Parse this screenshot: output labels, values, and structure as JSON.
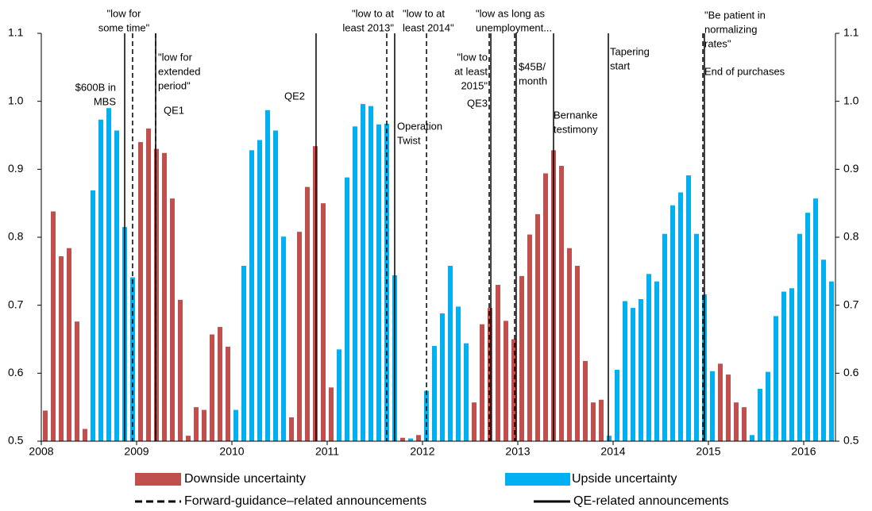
{
  "chart_data": {
    "type": "bar",
    "categories": [
      "2008",
      null,
      null,
      null,
      null,
      null,
      null,
      null,
      null,
      null,
      null,
      null,
      "2009",
      null,
      null,
      null,
      null,
      null,
      null,
      null,
      null,
      null,
      null,
      null,
      "2010",
      null,
      null,
      null,
      null,
      null,
      null,
      null,
      null,
      null,
      null,
      null,
      "2011",
      null,
      null,
      null,
      null,
      null,
      null,
      null,
      null,
      null,
      null,
      null,
      "2012",
      null,
      null,
      null,
      null,
      null,
      null,
      null,
      null,
      null,
      null,
      null,
      "2013",
      null,
      null,
      null,
      null,
      null,
      null,
      null,
      null,
      null,
      null,
      null,
      "2014",
      null,
      null,
      null,
      null,
      null,
      null,
      null,
      null,
      null,
      null,
      null,
      "2015",
      null,
      null,
      null,
      null,
      null,
      null,
      null,
      null,
      null,
      null,
      null,
      "2016",
      null,
      null,
      null
    ],
    "series": [
      {
        "name": "Downside uncertainty",
        "color": "#c0504d",
        "values": [
          0.545,
          0.838,
          0.772,
          0.784,
          0.676,
          0.518,
          null,
          null,
          null,
          null,
          null,
          null,
          0.94,
          0.96,
          0.93,
          0.924,
          0.857,
          0.708,
          0.508,
          0.55,
          0.546,
          0.657,
          0.668,
          0.639,
          null,
          null,
          null,
          null,
          null,
          null,
          null,
          0.535,
          0.808,
          0.874,
          0.934,
          0.85,
          0.579,
          null,
          null,
          null,
          null,
          null,
          null,
          null,
          null,
          0.505,
          null,
          0.509,
          null,
          null,
          null,
          null,
          null,
          null,
          0.557,
          0.672,
          0.696,
          0.73,
          0.677,
          0.65,
          0.743,
          0.804,
          0.834,
          0.894,
          0.928,
          0.905,
          0.784,
          0.758,
          0.618,
          0.557,
          0.561,
          null,
          null,
          null,
          null,
          null,
          null,
          null,
          null,
          null,
          null,
          null,
          null,
          null,
          null,
          0.614,
          0.598,
          0.557,
          0.55,
          null,
          null,
          null,
          null,
          null,
          null,
          null,
          null,
          null,
          null,
          null
        ]
      },
      {
        "name": "Upside uncertainty",
        "color": "#00b0f0",
        "values": [
          null,
          null,
          null,
          null,
          null,
          null,
          0.869,
          0.973,
          0.99,
          0.957,
          0.815,
          0.741,
          null,
          null,
          null,
          null,
          null,
          null,
          null,
          null,
          null,
          null,
          null,
          null,
          0.546,
          0.758,
          0.928,
          0.943,
          0.987,
          0.957,
          0.801,
          null,
          null,
          null,
          null,
          null,
          null,
          0.635,
          0.888,
          0.963,
          0.996,
          0.993,
          0.966,
          0.967,
          0.744,
          null,
          0.504,
          null,
          0.574,
          0.64,
          0.688,
          0.758,
          0.698,
          0.644,
          null,
          null,
          null,
          null,
          null,
          null,
          null,
          null,
          null,
          null,
          null,
          null,
          null,
          null,
          null,
          null,
          null,
          0.508,
          0.605,
          0.706,
          0.696,
          0.709,
          0.746,
          0.735,
          0.805,
          0.847,
          0.866,
          0.891,
          0.805,
          0.716,
          0.603,
          null,
          null,
          null,
          null,
          0.509,
          0.577,
          0.602,
          0.684,
          0.72,
          0.725,
          0.805,
          0.836,
          0.857,
          0.767,
          0.735
        ]
      }
    ],
    "ylim": [
      0.5,
      1.1
    ],
    "yticks": [
      0.5,
      0.6,
      0.7,
      0.8,
      0.9,
      {
        "value": 1.0,
        "label": "1.0"
      },
      1.1
    ],
    "xlim": [
      2008,
      2016.3333
    ],
    "line_styles": [
      {
        "style": "dashed",
        "name": "Forward-guidance–related announcements"
      },
      {
        "style": "solid",
        "name": "QE-related announcements"
      }
    ],
    "events": [
      {
        "x": 2008.875,
        "style": "solid",
        "label": [
          "$600B in",
          "MBS"
        ]
      },
      {
        "x": 2008.958,
        "style": "dashed",
        "label": [
          "\"low for",
          "some time\""
        ]
      },
      {
        "x": 2009.2,
        "style": "dashed",
        "label": [
          "\"low for",
          "extended",
          "period\""
        ]
      },
      {
        "x": 2009.2,
        "style": "solid",
        "label": [
          "QE1"
        ]
      },
      {
        "x": 2010.883,
        "style": "solid",
        "label": [
          "QE2"
        ]
      },
      {
        "x": 2011.625,
        "style": "dashed",
        "label": [
          "\"low to at",
          "least 2013\""
        ]
      },
      {
        "x": 2011.708,
        "style": "solid",
        "label": [
          "Operation",
          "Twist"
        ]
      },
      {
        "x": 2012.042,
        "style": "dashed",
        "label": [
          "\"low to at",
          "least 2014\""
        ]
      },
      {
        "x": 2012.7,
        "style": "dashed",
        "label": [
          "\"low to",
          "at least",
          "2015\""
        ]
      },
      {
        "x": 2012.717,
        "style": "solid",
        "label": [
          "QE3"
        ]
      },
      {
        "x": 2012.967,
        "style": "dashed",
        "label": [
          "\"low as long as",
          "unemployment..."
        ]
      },
      {
        "x": 2012.983,
        "style": "solid",
        "label": [
          "$45B/",
          "month"
        ]
      },
      {
        "x": 2013.375,
        "style": "solid",
        "label": [
          "Bernanke",
          "testimony"
        ]
      },
      {
        "x": 2013.95,
        "style": "solid",
        "label": [
          "Tapering",
          "start"
        ]
      },
      {
        "x": 2014.942,
        "style": "dashed",
        "label": [
          "\"Be patient in",
          "normalizing",
          "rates\""
        ]
      },
      {
        "x": 2014.958,
        "style": "solid",
        "label": [
          "End of purchases"
        ]
      }
    ]
  }
}
